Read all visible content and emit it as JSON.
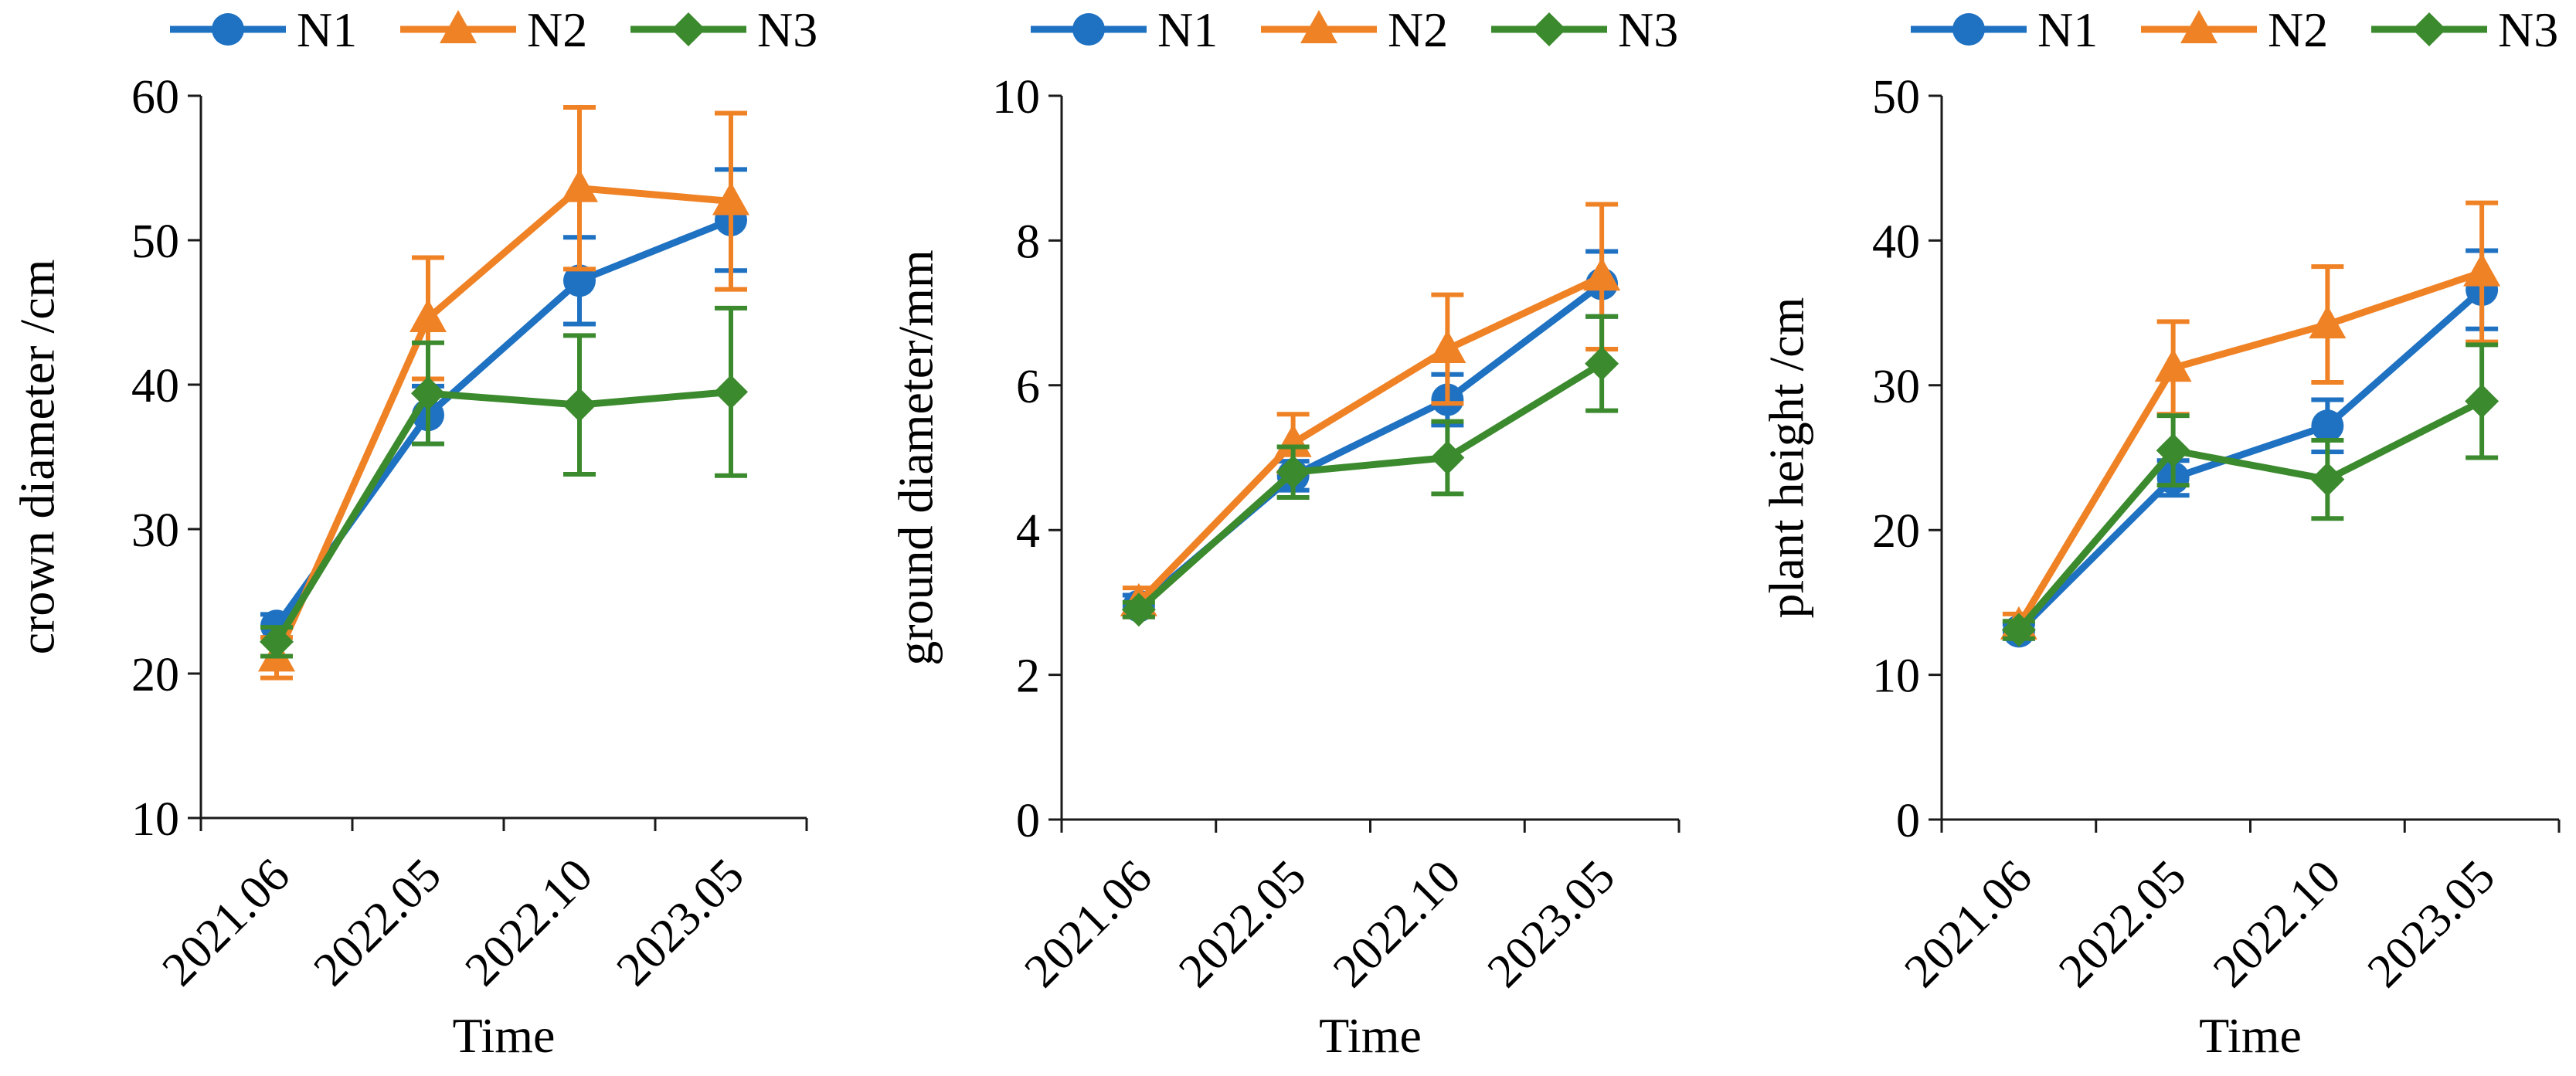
{
  "chart_data": [
    {
      "type": "line",
      "xlabel": "Time",
      "ylabel": "crown diameter /cm",
      "categories": [
        "2021.06",
        "2022.05",
        "2022.10",
        "2023.05"
      ],
      "ylim": [
        10,
        60
      ],
      "yticks": [
        10,
        20,
        30,
        40,
        50,
        60
      ],
      "grid": false,
      "legend": "top",
      "series": [
        {
          "name": "N1",
          "marker": "circle",
          "color": "#1F71C2",
          "values": [
            23.3,
            37.9,
            47.2,
            51.4
          ],
          "errors": [
            0.8,
            2.0,
            3.0,
            3.5
          ]
        },
        {
          "name": "N2",
          "marker": "triangle",
          "color": "#F08226",
          "values": [
            21.1,
            44.6,
            53.6,
            52.7
          ],
          "errors": [
            1.4,
            4.2,
            5.6,
            6.1
          ]
        },
        {
          "name": "N3",
          "marker": "diamond",
          "color": "#3C8A2E",
          "values": [
            22.2,
            39.4,
            38.6,
            39.5
          ],
          "errors": [
            1.0,
            3.5,
            4.8,
            5.8
          ]
        }
      ]
    },
    {
      "type": "line",
      "xlabel": "Time",
      "ylabel": "ground diameter/mm",
      "categories": [
        "2021.06",
        "2022.05",
        "2022.10",
        "2023.05"
      ],
      "ylim": [
        0,
        10
      ],
      "yticks": [
        0,
        2,
        4,
        6,
        8,
        10
      ],
      "grid": false,
      "legend": "top",
      "series": [
        {
          "name": "N1",
          "marker": "circle",
          "color": "#1F71C2",
          "values": [
            2.95,
            4.75,
            5.8,
            7.4
          ],
          "errors": [
            0.15,
            0.2,
            0.35,
            0.45
          ]
        },
        {
          "name": "N2",
          "marker": "triangle",
          "color": "#F08226",
          "values": [
            3.0,
            5.2,
            6.5,
            7.5
          ],
          "errors": [
            0.2,
            0.4,
            0.75,
            1.0
          ]
        },
        {
          "name": "N3",
          "marker": "diamond",
          "color": "#3C8A2E",
          "values": [
            2.9,
            4.8,
            5.0,
            6.3
          ],
          "errors": [
            0.1,
            0.35,
            0.5,
            0.65
          ]
        }
      ]
    },
    {
      "type": "line",
      "xlabel": "Time",
      "ylabel": "plant height /cm",
      "categories": [
        "2021.06",
        "2022.05",
        "2022.10",
        "2023.05"
      ],
      "ylim": [
        0,
        50
      ],
      "yticks": [
        0,
        10,
        20,
        30,
        40,
        50
      ],
      "grid": false,
      "legend": "top",
      "series": [
        {
          "name": "N1",
          "marker": "circle",
          "color": "#1F71C2",
          "values": [
            13.0,
            23.6,
            27.2,
            36.6
          ],
          "errors": [
            0.5,
            1.2,
            1.8,
            2.7
          ]
        },
        {
          "name": "N2",
          "marker": "triangle",
          "color": "#F08226",
          "values": [
            13.4,
            31.2,
            34.2,
            37.8
          ],
          "errors": [
            0.8,
            3.2,
            4.0,
            4.8
          ]
        },
        {
          "name": "N3",
          "marker": "diamond",
          "color": "#3C8A2E",
          "values": [
            13.1,
            25.5,
            23.5,
            28.9
          ],
          "errors": [
            0.6,
            2.4,
            2.7,
            3.9
          ]
        }
      ]
    }
  ]
}
